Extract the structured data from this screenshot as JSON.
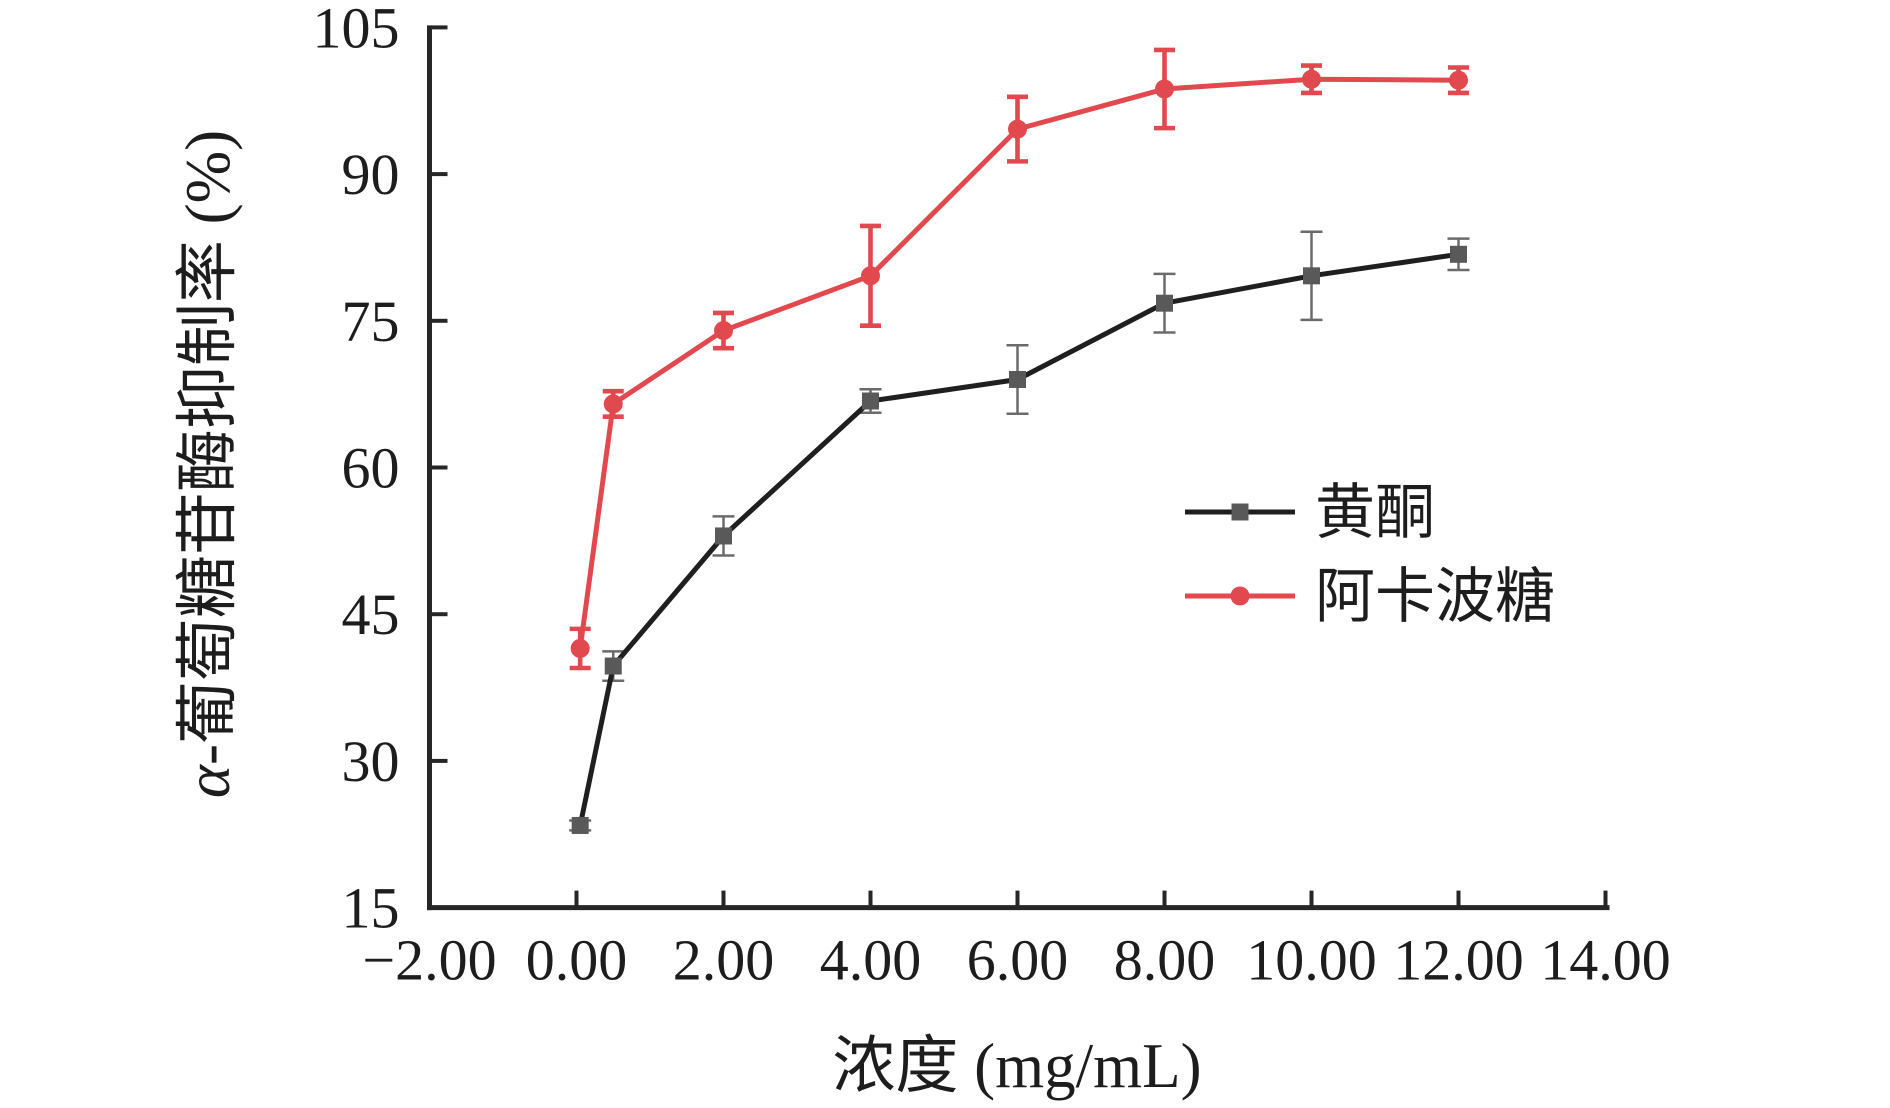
{
  "chart_data": {
    "type": "line",
    "title": "",
    "xlabel": "浓度 (mg/mL)",
    "ylabel": "α-葡萄糖苷酶抑制率 (%)",
    "ylabel_alpha": "α",
    "ylabel_rest": "-葡萄糖苷酶抑制率 (%)",
    "x": [
      0.05,
      0.5,
      2,
      4,
      6,
      8,
      10,
      12
    ],
    "series": [
      {
        "name": "黄酮",
        "line_color": "#1f1f1f",
        "marker": "square",
        "marker_color": "#595959",
        "errorbar_color": "#6b6b6b",
        "values": [
          23.4,
          39.7,
          53.0,
          66.8,
          69.0,
          76.8,
          79.6,
          81.8
        ],
        "errors": [
          0.5,
          1.5,
          2.0,
          1.2,
          3.5,
          3.0,
          4.5,
          1.6
        ]
      },
      {
        "name": "阿卡波糖",
        "line_color": "#e2494e",
        "marker": "circle",
        "marker_color": "#e2494e",
        "errorbar_color": "#e2494e",
        "values": [
          41.5,
          66.5,
          74.0,
          79.6,
          94.6,
          98.7,
          99.7,
          99.6
        ],
        "errors": [
          2.0,
          1.3,
          1.8,
          5.1,
          3.3,
          4.0,
          1.4,
          1.3
        ]
      }
    ],
    "xlim": [
      -2.0,
      14.0
    ],
    "ylim": [
      15,
      105
    ],
    "xticks": [
      -2,
      0,
      2,
      4,
      6,
      8,
      10,
      12,
      14
    ],
    "xtick_labels": [
      "−2.00",
      "0.00",
      "2.00",
      "4.00",
      "6.00",
      "8.00",
      "10.00",
      "12.00",
      "14.00"
    ],
    "yticks": [
      15,
      30,
      45,
      60,
      75,
      90,
      105
    ],
    "ytick_labels": [
      "15",
      "30",
      "45",
      "60",
      "75",
      "90",
      "105"
    ],
    "grid": false,
    "legend_position": "inside-right-middle",
    "axis_color": "#262626"
  }
}
